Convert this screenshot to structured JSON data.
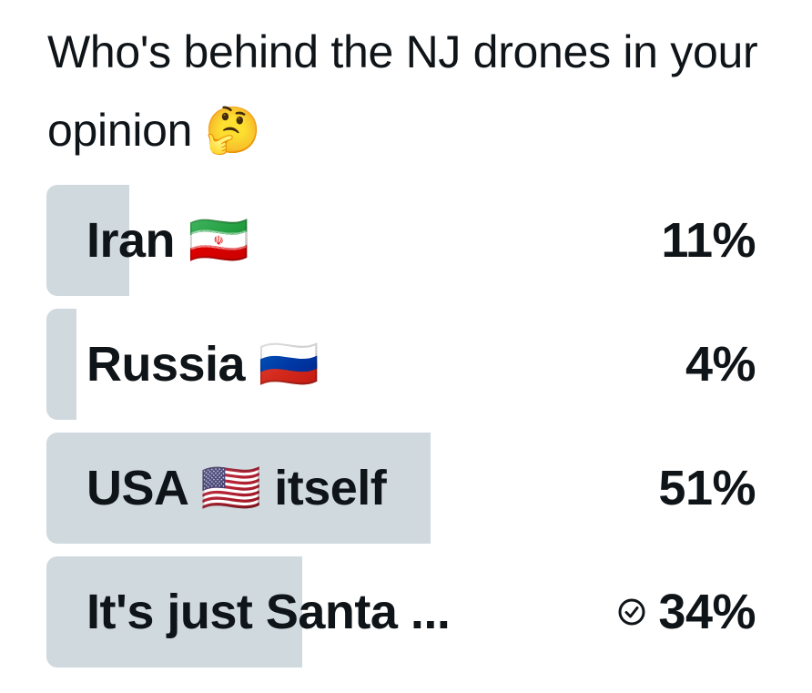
{
  "question": "Who's behind the NJ drones in your opinion 🤔",
  "options": [
    {
      "label": "Iran 🇮🇷",
      "percent": 11,
      "percent_label": "11%"
    },
    {
      "label": "Russia 🇷🇺",
      "percent": 4,
      "percent_label": "4%"
    },
    {
      "label": "USA 🇺🇸 itself",
      "percent": 51,
      "percent_label": "51%"
    },
    {
      "label": "It's just Santa ...",
      "percent": 34,
      "percent_label": "34%",
      "selected": true
    }
  ]
}
